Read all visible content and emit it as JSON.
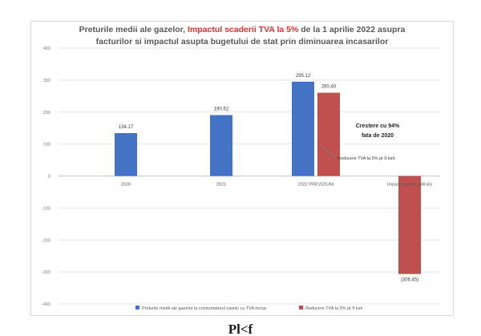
{
  "chart_data": {
    "type": "bar",
    "title": {
      "prefix": "Preturile medii ale gazelor, ",
      "highlight": "Impactul scaderii TVA la 5%",
      "suffix": " de la 1 aprilie 2022 asupra",
      "line2": "facturilor si impactul asupta bugetului de stat prin diminuarea incasarilor"
    },
    "categories": [
      "2020",
      "2021",
      "2022 PREVIZIUNI",
      "Impact bugetar (Mil.lei)"
    ],
    "ylim": [
      -400,
      400
    ],
    "yticks": [
      -400,
      -300,
      -200,
      -100,
      0,
      100,
      200,
      300,
      400
    ],
    "grid": true,
    "legend_position": "bottom",
    "series": [
      {
        "name": "Preturile medii ale gazelor la consumatorul casnic cu TVA inclus",
        "color": "#4472c4",
        "values": [
          134.17,
          190.62,
          295.12,
          null
        ],
        "labels": [
          "134.17",
          "190.62",
          "295.12",
          ""
        ]
      },
      {
        "name": "Reducere TVA la 5% pt 9 luni",
        "color": "#c0504d",
        "values": [
          null,
          null,
          260.4,
          -306.45
        ],
        "labels": [
          "",
          "",
          "260,40",
          "(306.45)"
        ]
      }
    ],
    "annotations": {
      "growth_line1": "Crestere cu 94%",
      "growth_line2": "fata de 2020",
      "callout": "Reducere TVA la 5% pt 9 luni;"
    }
  },
  "caption": "Pl<f"
}
